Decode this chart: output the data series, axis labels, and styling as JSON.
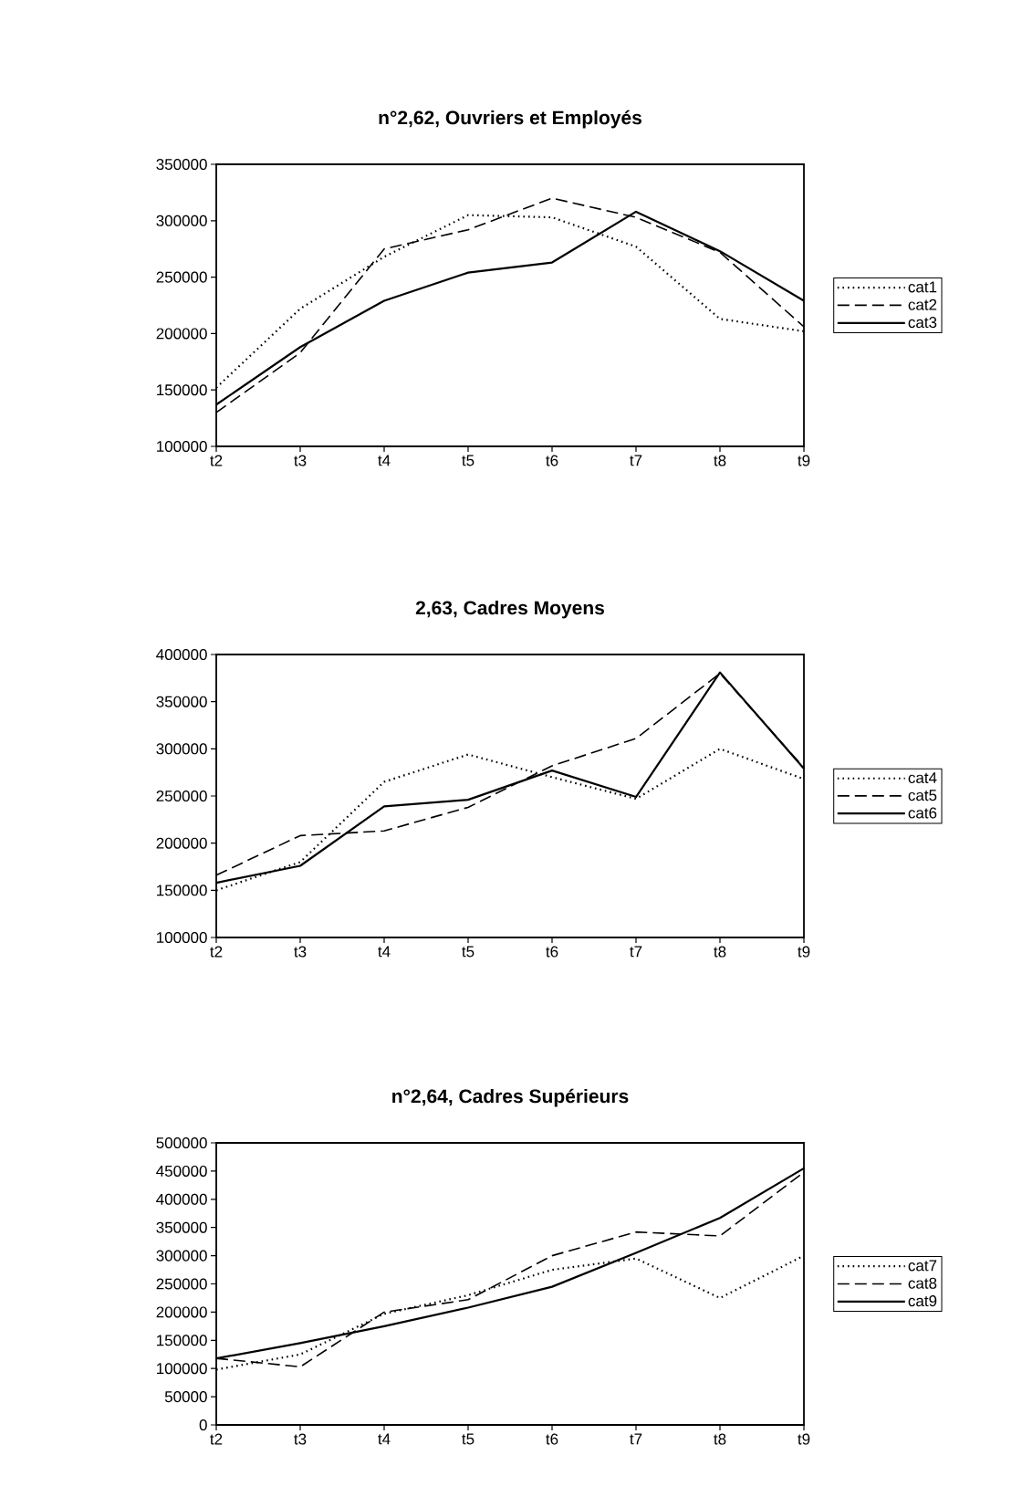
{
  "chart_data": [
    {
      "type": "line",
      "title": "n°2,62, Ouvriers et Employés",
      "categories": [
        "t2",
        "t3",
        "t4",
        "t5",
        "t6",
        "t7",
        "t8",
        "t9"
      ],
      "ylim": [
        100000,
        350000
      ],
      "yticks": [
        100000,
        150000,
        200000,
        250000,
        300000,
        350000
      ],
      "legend": "right",
      "series": [
        {
          "name": "cat1",
          "color": "#000000",
          "line_style": "dotted",
          "values": [
            152000,
            222000,
            268000,
            305000,
            303000,
            277000,
            213000,
            202000
          ]
        },
        {
          "name": "cat2",
          "color": "#000000",
          "line_style": "dashed",
          "values": [
            130000,
            183000,
            275000,
            292000,
            320000,
            303000,
            272000,
            206000
          ]
        },
        {
          "name": "cat3",
          "color": "#000000",
          "line_style": "solid",
          "values": [
            137000,
            188000,
            229000,
            254000,
            263000,
            308000,
            273000,
            229000
          ]
        }
      ]
    },
    {
      "type": "line",
      "title": "2,63, Cadres Moyens",
      "categories": [
        "t2",
        "t3",
        "t4",
        "t5",
        "t6",
        "t7",
        "t8",
        "t9"
      ],
      "ylim": [
        100000,
        400000
      ],
      "yticks": [
        100000,
        150000,
        200000,
        250000,
        300000,
        350000,
        400000
      ],
      "legend": "right",
      "series": [
        {
          "name": "cat4",
          "color": "#000000",
          "line_style": "dotted",
          "values": [
            150000,
            180000,
            265000,
            294000,
            270000,
            247000,
            300000,
            268000
          ]
        },
        {
          "name": "cat5",
          "color": "#000000",
          "line_style": "dashed",
          "values": [
            166000,
            208000,
            213000,
            238000,
            282000,
            311000,
            380000,
            280000
          ]
        },
        {
          "name": "cat6",
          "color": "#000000",
          "line_style": "solid",
          "values": [
            158000,
            176000,
            239000,
            246000,
            277000,
            249000,
            381000,
            279000
          ]
        }
      ]
    },
    {
      "type": "line",
      "title": "n°2,64, Cadres Supérieurs",
      "categories": [
        "t2",
        "t3",
        "t4",
        "t5",
        "t6",
        "t7",
        "t8",
        "t9"
      ],
      "ylim": [
        0,
        500000
      ],
      "yticks": [
        0,
        50000,
        100000,
        150000,
        200000,
        250000,
        300000,
        350000,
        400000,
        450000,
        500000
      ],
      "legend": "right",
      "series": [
        {
          "name": "cat7",
          "color": "#000000",
          "line_style": "dotted",
          "values": [
            98000,
            125000,
            197000,
            230000,
            275000,
            295000,
            225000,
            300000
          ]
        },
        {
          "name": "cat8",
          "color": "#000000",
          "line_style": "dashed",
          "values": [
            118000,
            103000,
            200000,
            222000,
            300000,
            342000,
            335000,
            448000
          ]
        },
        {
          "name": "cat9",
          "color": "#000000",
          "line_style": "solid",
          "values": [
            118000,
            145000,
            175000,
            208000,
            245000,
            305000,
            367000,
            455000
          ]
        }
      ]
    }
  ]
}
